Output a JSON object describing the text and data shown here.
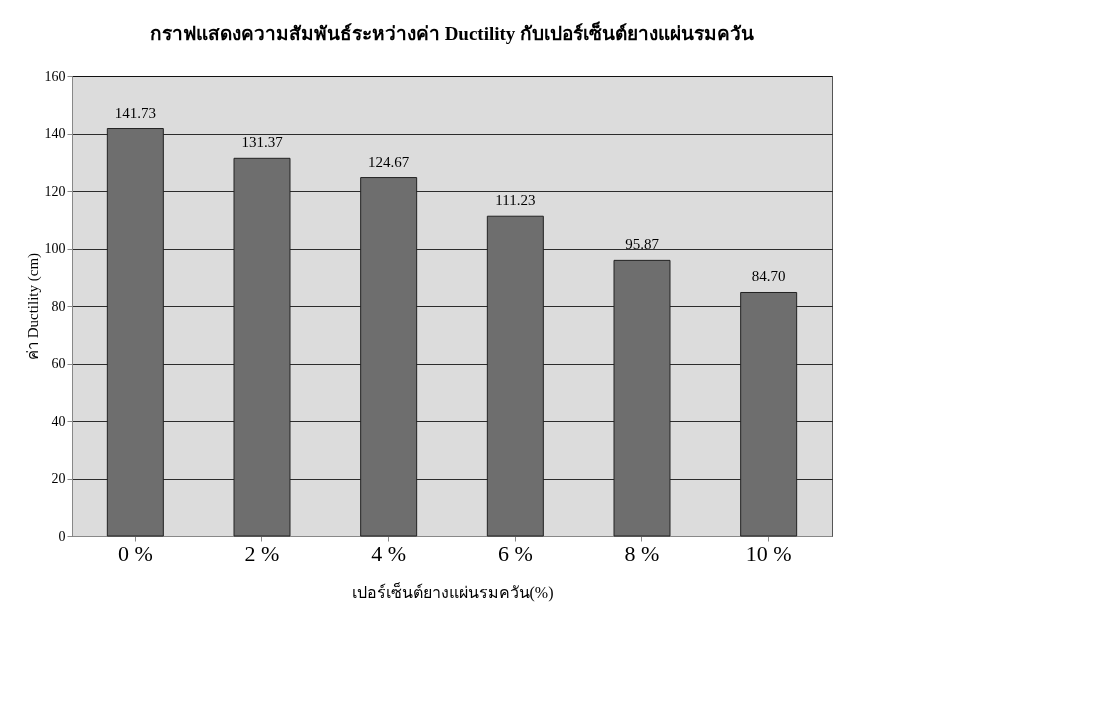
{
  "chart_data": {
    "type": "bar",
    "title": "กราฟแสดงความสัมพันธ์ระหว่างค่า Ductility กับเปอร์เซ็นต์ยางแผ่นรมควัน",
    "xlabel": "เปอร์เซ็นต์ยางแผ่นรมควัน(%)",
    "ylabel": "ค่า Ductility (cm)",
    "categories": [
      "0 %",
      "2 %",
      "4 %",
      "6 %",
      "8 %",
      "10 %"
    ],
    "values": [
      141.73,
      131.37,
      124.67,
      111.23,
      95.87,
      84.7
    ],
    "value_labels": [
      "141.73",
      "131.37",
      "124.67",
      "111.23",
      "95.87",
      "84.70"
    ],
    "color": "#6e6e6e",
    "ylim": [
      0,
      160
    ],
    "yticks": [
      0,
      20,
      40,
      60,
      80,
      100,
      120,
      140,
      160
    ],
    "grid": "y"
  }
}
